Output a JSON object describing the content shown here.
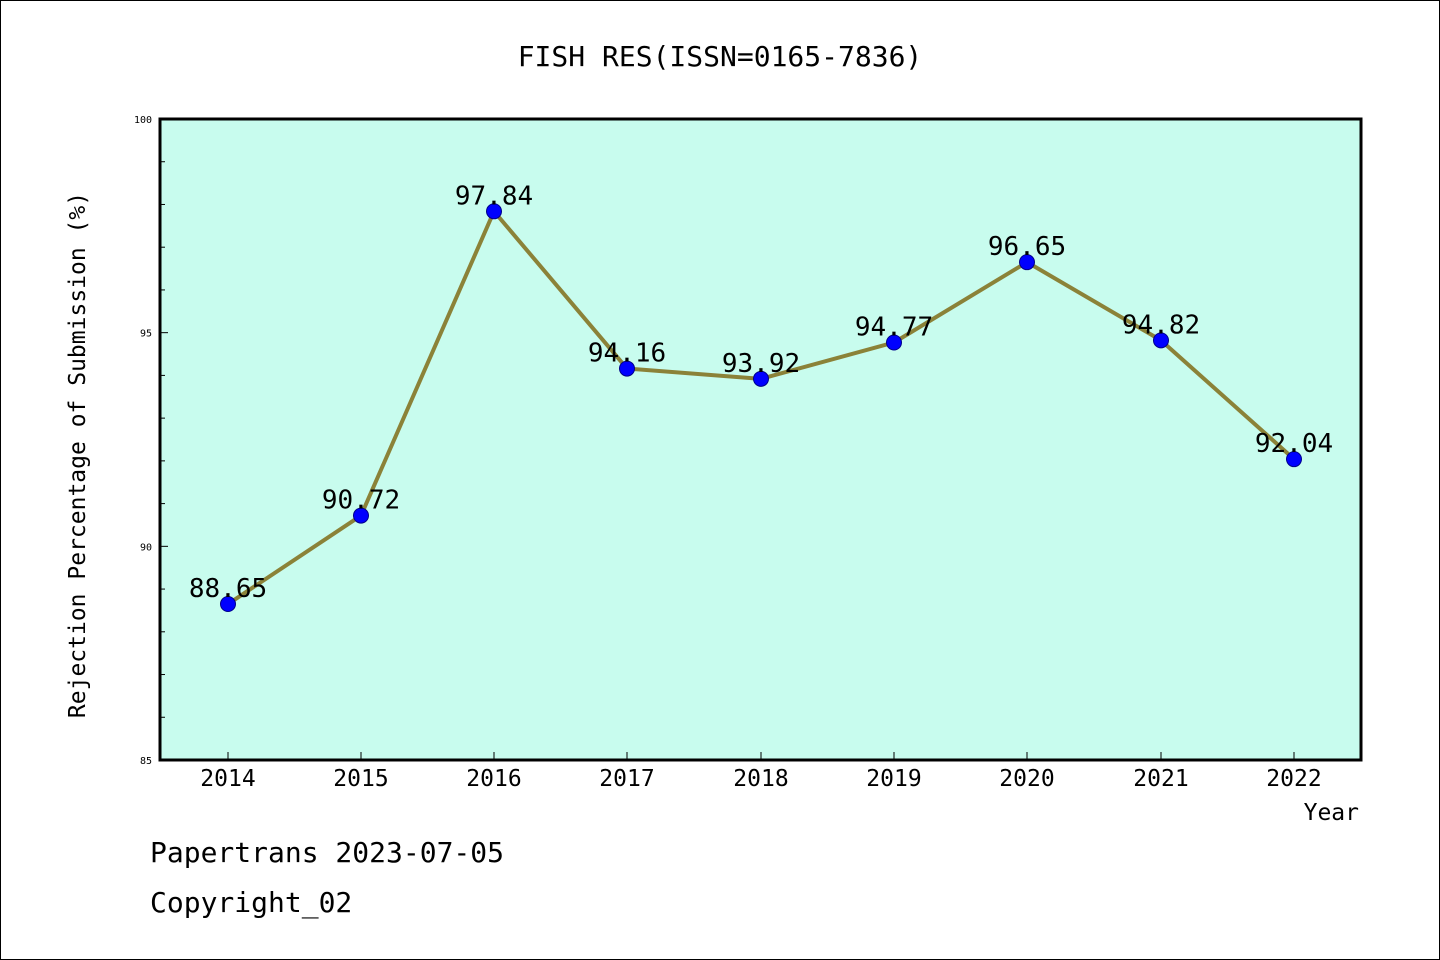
{
  "chart_data": {
    "type": "line",
    "title": "FISH RES(ISSN=0165-7836)",
    "xlabel": "Year",
    "ylabel": "Rejection Percentage of Submission (%)",
    "categories": [
      "2014",
      "2015",
      "2016",
      "2017",
      "2018",
      "2019",
      "2020",
      "2021",
      "2022"
    ],
    "series": [
      {
        "values": [
          88.65,
          90.72,
          97.84,
          94.16,
          93.92,
          94.77,
          96.65,
          94.82,
          92.04
        ]
      }
    ],
    "data_labels": [
      "88.65",
      "90.72",
      "97.84",
      "94.16",
      "93.92",
      "94.77",
      "96.65",
      "94.82",
      "92.04"
    ],
    "ylim": [
      85,
      100
    ],
    "yticks": [
      "85",
      "90",
      "95",
      "100"
    ],
    "grid": false,
    "colors": {
      "plot_background": "#c8fcee",
      "line": "#8b8238",
      "marker": "#0000ff"
    }
  },
  "footer": {
    "line1": "Papertrans 2023-07-05",
    "line2": "Copyright_02"
  }
}
